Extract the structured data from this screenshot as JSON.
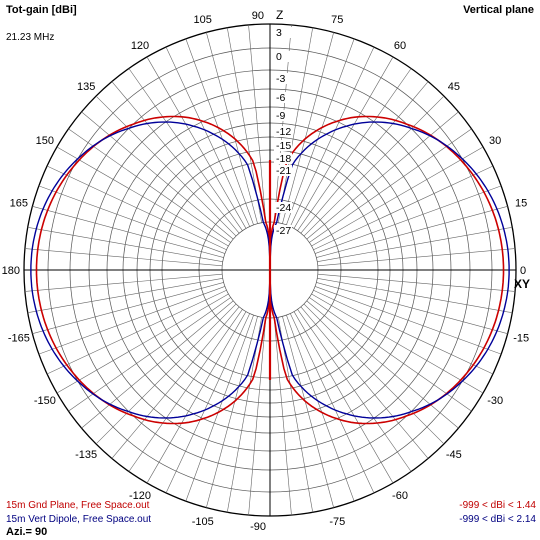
{
  "header": {
    "left_title": "Tot-gain [dBi]",
    "frequency": "21.23 MHz",
    "right_title": "Vertical plane"
  },
  "footer": {
    "azimuth": "Azi.= 90"
  },
  "colors": {
    "series1": "#cc0000",
    "series2": "#000099",
    "grid": "#000000"
  },
  "chart_data": {
    "type": "polar",
    "radial_scale": "dBi",
    "radial_ticks": [
      "3",
      "0",
      "-3",
      "-6",
      "-9",
      "-12",
      "-15",
      "-18",
      "-21",
      "-24",
      "-27"
    ],
    "angle_labels": [
      "90",
      "75",
      "60",
      "45",
      "30",
      "15",
      "0",
      "-15",
      "-30",
      "-45",
      "-60",
      "-75",
      "-90",
      "-105",
      "-120",
      "-135",
      "-150",
      "-165",
      "180",
      "165",
      "150",
      "135",
      "120",
      "105"
    ],
    "axis_labels": {
      "z": "Z",
      "xy": "XY"
    },
    "series": [
      {
        "name": "15m Gnd Plane, Free Space.out",
        "range_label": "-999 < dBi < 1.44",
        "max_gain": 1.44,
        "pattern": "doughnut_null_at_zenith"
      },
      {
        "name": "15m Vert Dipole, Free Space.out",
        "range_label": "-999 < dBi < 2.14",
        "max_gain": 2.14,
        "pattern": "doughnut_null_at_zenith"
      }
    ]
  }
}
